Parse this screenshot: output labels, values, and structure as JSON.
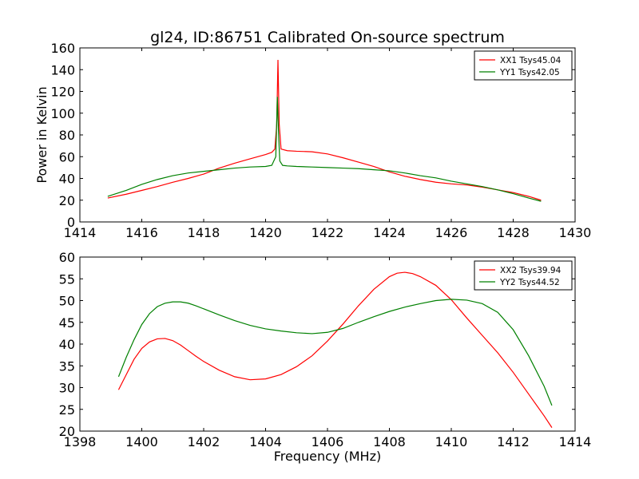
{
  "chart_data": [
    {
      "type": "line",
      "title": "gl24, ID:86751 Calibrated On-source spectrum",
      "xlabel": "",
      "ylabel": "Power in Kelvin",
      "xlim": [
        1414,
        1430
      ],
      "ylim": [
        0,
        160
      ],
      "xticks": [
        "1414",
        "1416",
        "1418",
        "1420",
        "1422",
        "1424",
        "1426",
        "1428",
        "1430"
      ],
      "yticks": [
        "0",
        "20",
        "40",
        "60",
        "80",
        "100",
        "120",
        "140",
        "160"
      ],
      "legend_placement": "top-right",
      "series": [
        {
          "name": "XX1 Tsys45.04",
          "color": "#ff0000",
          "x": [
            1414.9,
            1415.5,
            1416.0,
            1416.5,
            1417.0,
            1417.5,
            1418.0,
            1418.5,
            1419.0,
            1419.5,
            1420.0,
            1420.2,
            1420.3,
            1420.36,
            1420.4,
            1420.44,
            1420.5,
            1420.7,
            1421.0,
            1421.5,
            1422.0,
            1422.5,
            1423.0,
            1423.5,
            1424.0,
            1424.5,
            1425.0,
            1425.5,
            1426.0,
            1426.5,
            1427.0,
            1427.5,
            1428.0,
            1428.5,
            1428.9
          ],
          "values": [
            22,
            25.5,
            29,
            32.5,
            36.5,
            40,
            44,
            49.5,
            54,
            58,
            62,
            64,
            67,
            90,
            149,
            90,
            67,
            65.5,
            65,
            64.5,
            62.5,
            59,
            55,
            51,
            46,
            42,
            39,
            36.5,
            35,
            34,
            32,
            29.5,
            27,
            23.5,
            20
          ]
        },
        {
          "name": "YY1 Tsys42.05",
          "color": "#008000",
          "x": [
            1414.9,
            1415.5,
            1416.0,
            1416.5,
            1417.0,
            1417.5,
            1418.0,
            1418.5,
            1419.0,
            1419.5,
            1420.0,
            1420.2,
            1420.33,
            1420.38,
            1420.42,
            1420.46,
            1420.55,
            1420.7,
            1421.0,
            1421.5,
            1422.0,
            1422.5,
            1423.0,
            1423.5,
            1424.0,
            1424.5,
            1425.0,
            1425.5,
            1426.0,
            1426.5,
            1427.0,
            1427.5,
            1428.0,
            1428.5,
            1428.9
          ],
          "values": [
            23.5,
            29,
            34.5,
            39,
            42.5,
            45,
            46.5,
            48,
            49.5,
            50.5,
            51,
            52,
            60,
            115,
            80,
            56,
            52,
            51.5,
            51,
            50.5,
            50,
            49.5,
            49,
            48,
            47,
            45,
            42.5,
            40.5,
            37.5,
            35,
            32.5,
            29.5,
            26,
            22,
            19
          ]
        }
      ]
    },
    {
      "type": "line",
      "title": "",
      "xlabel": "Frequency (MHz)",
      "ylabel": "",
      "xlim": [
        1398,
        1414
      ],
      "ylim": [
        20,
        60
      ],
      "xticks": [
        "1398",
        "1400",
        "1402",
        "1404",
        "1406",
        "1408",
        "1410",
        "1412",
        "1414"
      ],
      "yticks": [
        "20",
        "25",
        "30",
        "35",
        "40",
        "45",
        "50",
        "55",
        "60"
      ],
      "legend_placement": "top-right",
      "series": [
        {
          "name": "XX2 Tsys39.94",
          "color": "#ff0000",
          "x": [
            1399.25,
            1399.5,
            1399.75,
            1400.0,
            1400.25,
            1400.5,
            1400.75,
            1401.0,
            1401.25,
            1401.5,
            1401.75,
            1402.0,
            1402.5,
            1403.0,
            1403.5,
            1404.0,
            1404.5,
            1405.0,
            1405.5,
            1406.0,
            1406.5,
            1407.0,
            1407.5,
            1408.0,
            1408.25,
            1408.5,
            1408.75,
            1409.0,
            1409.5,
            1410.0,
            1410.5,
            1411.0,
            1411.5,
            1412.0,
            1412.5,
            1413.0,
            1413.25
          ],
          "values": [
            29.5,
            33,
            36.5,
            39,
            40.5,
            41.2,
            41.3,
            40.8,
            39.8,
            38.5,
            37.2,
            36,
            34,
            32.5,
            31.8,
            32,
            33,
            34.8,
            37.3,
            40.7,
            44.6,
            48.8,
            52.6,
            55.5,
            56.3,
            56.5,
            56.2,
            55.5,
            53.5,
            50.2,
            46,
            42,
            38,
            33.5,
            28.5,
            23.5,
            20.8
          ]
        },
        {
          "name": "YY2 Tsys44.52",
          "color": "#008000",
          "x": [
            1399.25,
            1399.5,
            1399.75,
            1400.0,
            1400.25,
            1400.5,
            1400.75,
            1401.0,
            1401.25,
            1401.5,
            1401.75,
            1402.0,
            1402.5,
            1403.0,
            1403.5,
            1404.0,
            1404.5,
            1405.0,
            1405.5,
            1406.0,
            1406.5,
            1407.0,
            1407.5,
            1408.0,
            1408.5,
            1409.0,
            1409.5,
            1410.0,
            1410.5,
            1411.0,
            1411.5,
            1412.0,
            1412.5,
            1413.0,
            1413.25
          ],
          "values": [
            32.5,
            37,
            41,
            44.5,
            47,
            48.6,
            49.4,
            49.7,
            49.7,
            49.4,
            48.8,
            48.1,
            46.7,
            45.4,
            44.3,
            43.5,
            43,
            42.6,
            42.4,
            42.7,
            43.6,
            45,
            46.3,
            47.5,
            48.5,
            49.3,
            50,
            50.3,
            50.1,
            49.3,
            47.3,
            43.3,
            37.3,
            30.3,
            25.9
          ]
        }
      ]
    }
  ]
}
